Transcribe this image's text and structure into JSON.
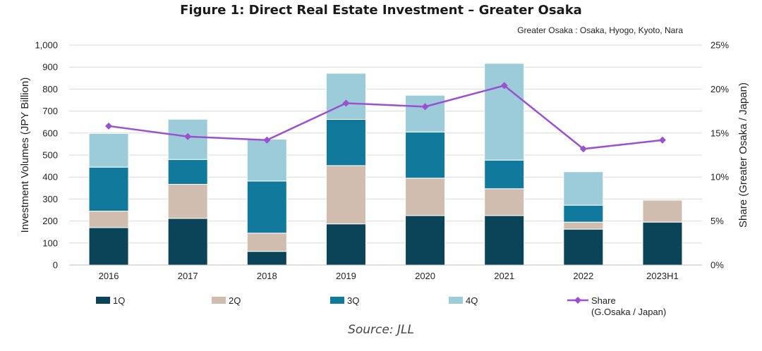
{
  "chart_data": {
    "type": "bar",
    "stacked": true,
    "title": "Figure 1: Direct Real Estate Investment – Greater Osaka",
    "subtitle": "Greater Osaka : Osaka, Hyogo, Kyoto, Nara",
    "categories": [
      "2016",
      "2017",
      "2018",
      "2019",
      "2020",
      "2021",
      "2022",
      "2023H1"
    ],
    "series": [
      {
        "name": "1Q",
        "color": "#0b4459",
        "values": [
          170,
          212,
          62,
          187,
          225,
          225,
          163,
          195
        ]
      },
      {
        "name": "2Q",
        "color": "#d1bdaf",
        "values": [
          75,
          155,
          83,
          265,
          170,
          122,
          32,
          100
        ]
      },
      {
        "name": "3Q",
        "color": "#117a9c",
        "values": [
          200,
          113,
          237,
          210,
          210,
          130,
          77,
          0
        ]
      },
      {
        "name": "4Q",
        "color": "#9ccbd9",
        "values": [
          153,
          183,
          190,
          210,
          167,
          440,
          152,
          0
        ]
      }
    ],
    "line_series": {
      "name": "Share",
      "legend_label_line1": "Share",
      "legend_label_line2": "(G.Osaka / Japan)",
      "color": "#9b4fd1",
      "values": [
        15.8,
        14.6,
        14.2,
        18.4,
        18.0,
        20.4,
        13.2,
        14.2
      ]
    },
    "ylabel": "Investment Volumes (JPY Billion)",
    "y2label": "Share (Greater Osaka / Japan)",
    "ylim": [
      0,
      1000
    ],
    "y2lim": [
      0,
      25
    ],
    "yticks": [
      "0",
      "100",
      "200",
      "300",
      "400",
      "500",
      "600",
      "700",
      "800",
      "900",
      "1,000"
    ],
    "y2ticks": [
      "0%",
      "5%",
      "10%",
      "15%",
      "20%",
      "25%"
    ],
    "grid": true,
    "legend_position": "bottom",
    "source": "Source: JLL"
  }
}
